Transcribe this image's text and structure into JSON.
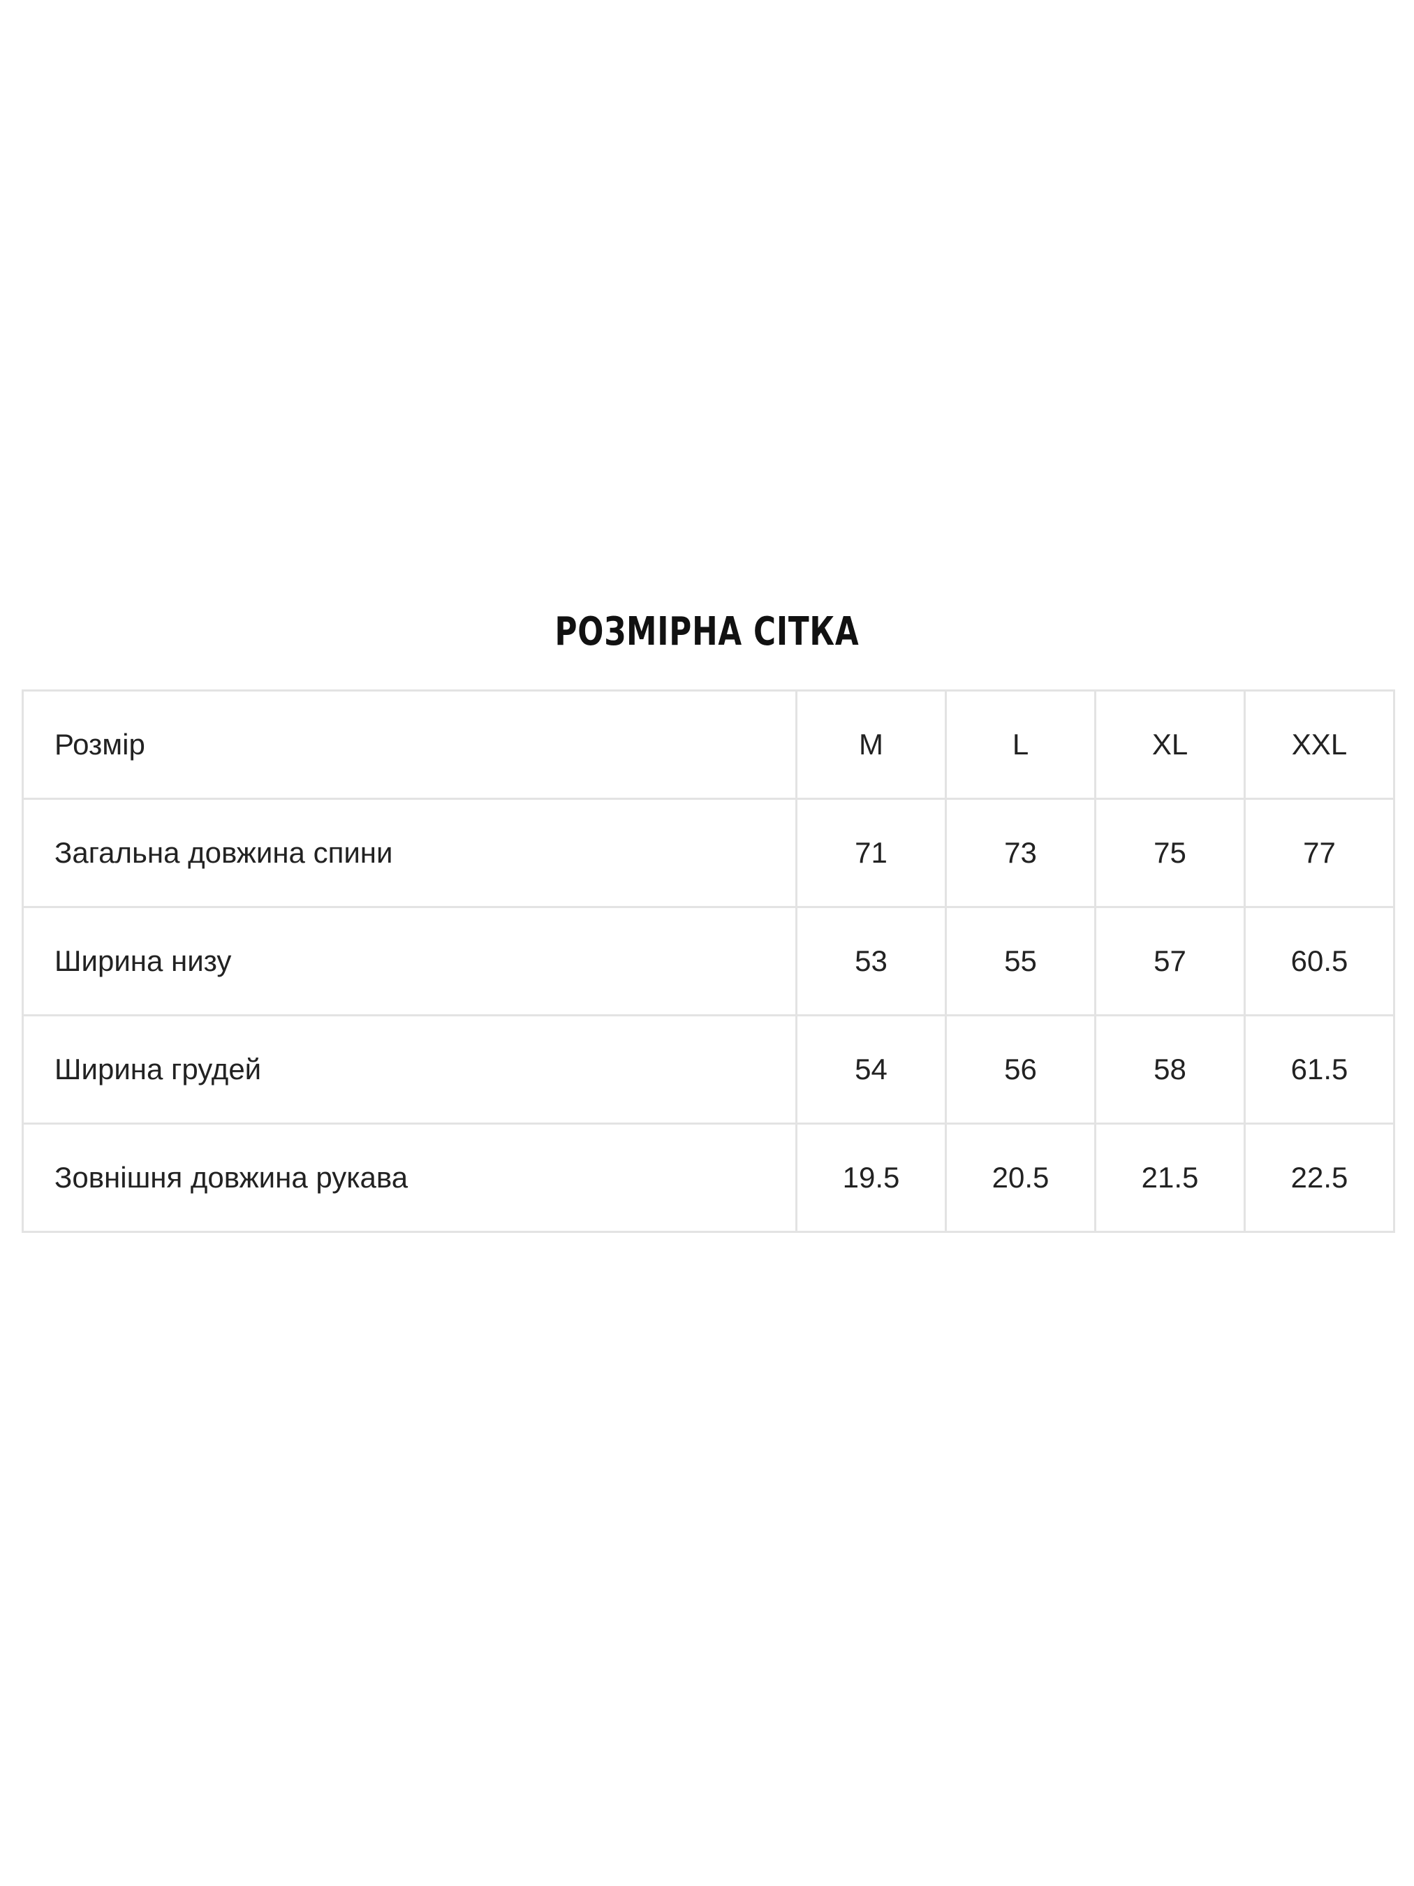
{
  "title": "РОЗМІРНА СІТКА",
  "table": {
    "header": {
      "label": "Розмір",
      "sizes": [
        "M",
        "L",
        "XL",
        "XXL"
      ]
    },
    "rows": [
      {
        "label": "Загальна довжина спини",
        "values": [
          "71",
          "73",
          "75",
          "77"
        ]
      },
      {
        "label": "Ширина низу",
        "values": [
          "53",
          "55",
          "57",
          "60.5"
        ]
      },
      {
        "label": "Ширина грудей",
        "values": [
          "54",
          "56",
          "58",
          "61.5"
        ]
      },
      {
        "label": "Зовнішня довжина рукава",
        "values": [
          "19.5",
          "20.5",
          "21.5",
          "22.5"
        ]
      }
    ]
  }
}
